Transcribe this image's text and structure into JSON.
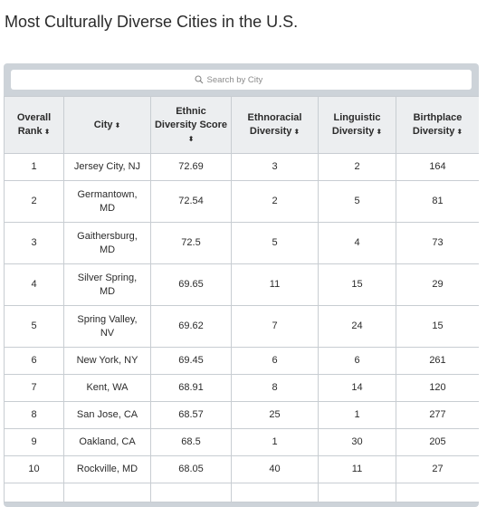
{
  "page": {
    "title": "Most Culturally Diverse Cities in the U.S."
  },
  "search": {
    "placeholder": "Search by City",
    "icon": "search-icon"
  },
  "table": {
    "sort_glyph": "⬍",
    "headers": [
      {
        "line1": "Overall",
        "line2": "Rank"
      },
      {
        "line1": "City",
        "line2": ""
      },
      {
        "line1": "Ethnic",
        "line2": "Diversity Score"
      },
      {
        "line1": "Ethnoracial",
        "line2": "Diversity"
      },
      {
        "line1": "Linguistic",
        "line2": "Diversity"
      },
      {
        "line1": "Birthplace",
        "line2": "Diversity"
      }
    ],
    "rows": [
      {
        "rank": "1",
        "city1": "Jersey City, NJ",
        "city2": "",
        "score": "72.69",
        "ethnoracial": "3",
        "linguistic": "2",
        "birthplace": "164"
      },
      {
        "rank": "2",
        "city1": "Germantown,",
        "city2": "MD",
        "score": "72.54",
        "ethnoracial": "2",
        "linguistic": "5",
        "birthplace": "81"
      },
      {
        "rank": "3",
        "city1": "Gaithersburg,",
        "city2": "MD",
        "score": "72.5",
        "ethnoracial": "5",
        "linguistic": "4",
        "birthplace": "73"
      },
      {
        "rank": "4",
        "city1": "Silver Spring,",
        "city2": "MD",
        "score": "69.65",
        "ethnoracial": "11",
        "linguistic": "15",
        "birthplace": "29"
      },
      {
        "rank": "5",
        "city1": "Spring Valley,",
        "city2": "NV",
        "score": "69.62",
        "ethnoracial": "7",
        "linguistic": "24",
        "birthplace": "15"
      },
      {
        "rank": "6",
        "city1": "New York, NY",
        "city2": "",
        "score": "69.45",
        "ethnoracial": "6",
        "linguistic": "6",
        "birthplace": "261"
      },
      {
        "rank": "7",
        "city1": "Kent, WA",
        "city2": "",
        "score": "68.91",
        "ethnoracial": "8",
        "linguistic": "14",
        "birthplace": "120"
      },
      {
        "rank": "8",
        "city1": "San Jose, CA",
        "city2": "",
        "score": "68.57",
        "ethnoracial": "25",
        "linguistic": "1",
        "birthplace": "277"
      },
      {
        "rank": "9",
        "city1": "Oakland, CA",
        "city2": "",
        "score": "68.5",
        "ethnoracial": "1",
        "linguistic": "30",
        "birthplace": "205"
      },
      {
        "rank": "10",
        "city1": "Rockville, MD",
        "city2": "",
        "score": "68.05",
        "ethnoracial": "40",
        "linguistic": "11",
        "birthplace": "27"
      }
    ]
  }
}
